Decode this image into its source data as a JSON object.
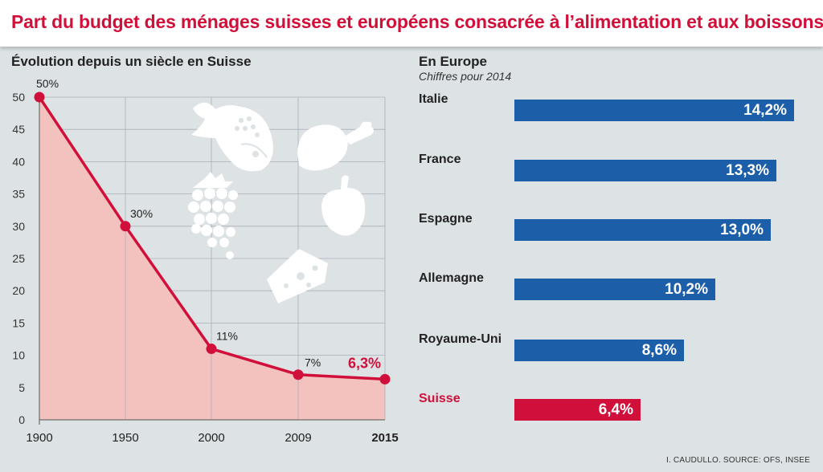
{
  "title": "Part du budget des ménages suisses et européens consacrée à l’alimentation et aux boissons",
  "left_subtitle": "Évolution depuis un siècle en Suisse",
  "right_title": "En Europe",
  "right_subtitle": "Chiffres pour 2014",
  "source": "I. CAUDULLO. SOURCE: OFS, INSEE",
  "colors": {
    "accent_red": "#d0103a",
    "area_fill": "#f3c2bf",
    "bar_blue": "#1d5ea8",
    "text_dark": "#222222",
    "background": "#dde2e5"
  },
  "icons": [
    "fish-icon",
    "chicken-leg-icon",
    "grapes-icon",
    "pepper-icon",
    "cheese-icon"
  ],
  "chart_data": [
    {
      "type": "area",
      "title": "Évolution depuis un siècle en Suisse",
      "x": [
        "1900",
        "1950",
        "2000",
        "2009",
        "2015"
      ],
      "values": [
        50,
        30,
        11,
        7,
        6.3
      ],
      "data_labels": [
        "50%",
        "30%",
        "11%",
        "7%",
        "6,3%"
      ],
      "y_ticks": [
        "0",
        "5",
        "10",
        "15",
        "20",
        "25",
        "30",
        "35",
        "40",
        "45",
        "50"
      ],
      "ylim": [
        0,
        50
      ],
      "grid": true,
      "highlight_last": true
    },
    {
      "type": "bar",
      "orientation": "horizontal",
      "title": "En Europe",
      "subtitle": "Chiffres pour 2014",
      "categories": [
        "Italie",
        "France",
        "Espagne",
        "Allemagne",
        "Royaume-Uni",
        "Suisse"
      ],
      "values": [
        14.2,
        13.3,
        13.0,
        10.2,
        8.6,
        6.4
      ],
      "value_labels": [
        "14,2%",
        "13,3%",
        "13,0%",
        "10,2%",
        "8,6%",
        "6,4%"
      ],
      "highlight": "Suisse",
      "xlim": [
        0,
        15.5
      ]
    }
  ]
}
